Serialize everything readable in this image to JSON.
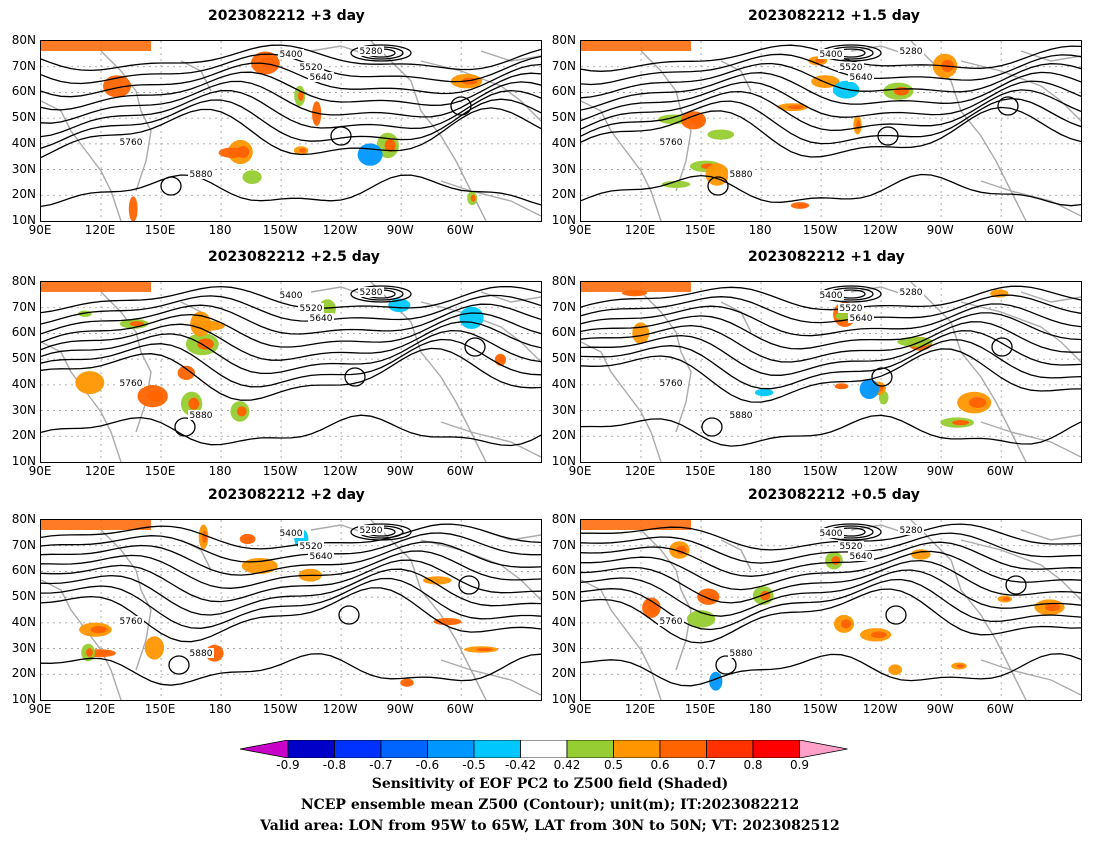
{
  "panels": [
    {
      "title": "2023082212 +3 day"
    },
    {
      "title": "2023082212 +1.5 day"
    },
    {
      "title": "2023082212 +2.5 day"
    },
    {
      "title": "2023082212 +1 day"
    },
    {
      "title": "2023082212 +2 day"
    },
    {
      "title": "2023082212 +0.5 day"
    }
  ],
  "lat_labels": [
    "80N",
    "70N",
    "60N",
    "50N",
    "40N",
    "30N",
    "20N",
    "10N"
  ],
  "lon_labels": [
    "90E",
    "120E",
    "150E",
    "180",
    "150W",
    "120W",
    "90W",
    "60W"
  ],
  "contour_levels": [
    "5280",
    "5400",
    "5520",
    "5640",
    "5760",
    "5880"
  ],
  "colorbar": {
    "labels": [
      "-0.9",
      "-0.8",
      "-0.7",
      "-0.6",
      "-0.5",
      "-0.42",
      "0.42",
      "0.5",
      "0.6",
      "0.7",
      "0.8",
      "0.9"
    ],
    "colors": [
      "#c800c8",
      "#0000c8",
      "#0032ff",
      "#0064ff",
      "#0096ff",
      "#00c8ff",
      "#ffffff",
      "#96cd32",
      "#ff9600",
      "#ff6400",
      "#ff3200",
      "#ff0000",
      "#ffa0c8"
    ]
  },
  "caption": {
    "line1": "Sensitivity of EOF PC2 to Z500 field (Shaded)",
    "line2": "NCEP ensemble mean Z500 (Contour); unit(m); IT:2023082212",
    "line3": "Valid area: LON from 95W to 65W, LAT from 30N to 50N; VT: 2023082512"
  }
}
